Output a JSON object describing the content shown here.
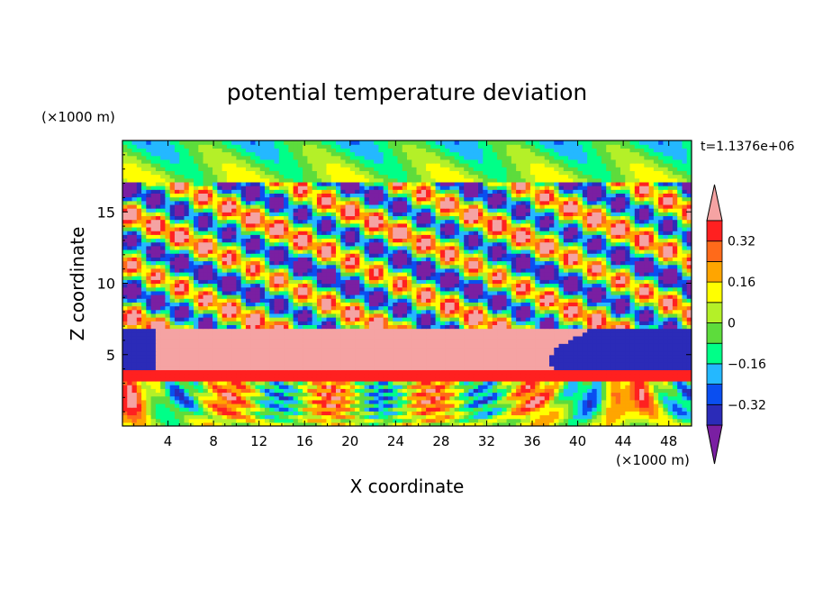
{
  "chart_data": {
    "type": "heatmap",
    "title": "potential temperature deviation",
    "xlabel": "X coordinate",
    "ylabel": "Z coordinate",
    "x_units": "(×1000 m)",
    "y_units": "(×1000 m)",
    "time_label": "t=1.1376e+06",
    "xlim": [
      0,
      50
    ],
    "ylim": [
      0,
      20
    ],
    "x_ticks": [
      4,
      8,
      12,
      16,
      20,
      24,
      28,
      32,
      36,
      40,
      44,
      48
    ],
    "x_tick_labels": [
      "4",
      "8",
      "12",
      "16",
      "20",
      "24",
      "28",
      "32",
      "36",
      "40",
      "44",
      "48"
    ],
    "y_ticks": [
      5,
      10,
      15
    ],
    "y_tick_labels": [
      "5",
      "10",
      "15"
    ],
    "colorbar": {
      "levels": [
        -0.4,
        -0.32,
        -0.24,
        -0.16,
        -0.08,
        0,
        0.08,
        0.16,
        0.24,
        0.32,
        0.4
      ],
      "colors": [
        "#7a1fa2",
        "#2b2bb8",
        "#0a4ef0",
        "#24b8ff",
        "#00ff88",
        "#5ddc3c",
        "#b4f028",
        "#ffff00",
        "#ffa500",
        "#ff6a1a",
        "#ff2020",
        "#f5a3a3"
      ],
      "tick_values": [
        -0.32,
        -0.16,
        0,
        0.16,
        0.32
      ],
      "tick_labels": [
        "−0.32",
        "−0.16",
        "0",
        "0.16",
        "0.32"
      ]
    },
    "field_features": {
      "surface_layer_zmax": 4,
      "warm_band_z": [
        4.3,
        6.8
      ],
      "warm_band_x": [
        3,
        40
      ],
      "wave_layer_z": [
        7,
        17
      ],
      "wave_wavelength_x": 8,
      "upper_layer_zmin": 17
    }
  }
}
